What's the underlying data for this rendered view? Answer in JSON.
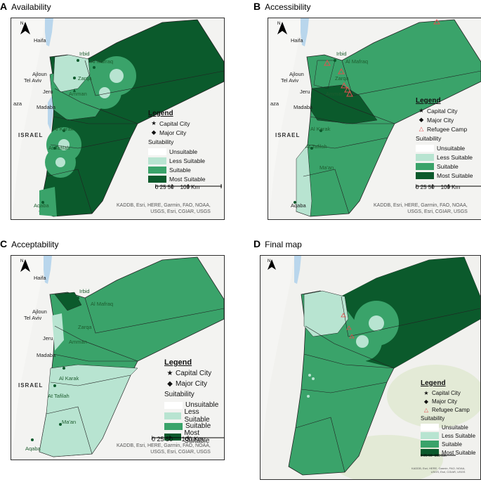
{
  "panels": [
    {
      "letter": "A",
      "title": "Availability"
    },
    {
      "letter": "B",
      "title": "Accessibility"
    },
    {
      "letter": "C",
      "title": "Acceptability"
    },
    {
      "letter": "D",
      "title": "Final map"
    }
  ],
  "legend": {
    "title": "Legend",
    "capital": "Capital City",
    "major": "Major City",
    "refugee": "Refugee Camp",
    "suitability": "Suitability",
    "classes": [
      "Unsuitable",
      "Less Suitable",
      "Suitable",
      "Most Suitable"
    ]
  },
  "colors": {
    "unsuitable": "#ffffff",
    "less": "#b8e4d1",
    "suitable": "#3aa36a",
    "most": "#0b5a2c",
    "water": "#b9d6ec",
    "land_out": "#f3f3f1"
  },
  "scale": {
    "ticks": "0 25 50",
    "end": "100 Km"
  },
  "credit": {
    "line1": "KADDB, Esri, HERE, Garmin, FAO, NOAA,",
    "line2": "USGS, Esri, CGIAR, USGS"
  },
  "north": "N",
  "places": {
    "haifa": "Haifa",
    "irbid": "Irbid",
    "mafraq": "Al Mafraq",
    "ajloun": "Ajloun",
    "telaviv": "Tel Aviv",
    "zarqa": "Zarqa",
    "jeru": "Jeru",
    "amman": "Amman",
    "gaza": "aza",
    "madaba": "Madaba",
    "israel": "ISRAEL",
    "karak": "Al Karak",
    "tafilah": "At Tafilah",
    "maan": "Ma'an",
    "aqaba": "Aqaba"
  }
}
